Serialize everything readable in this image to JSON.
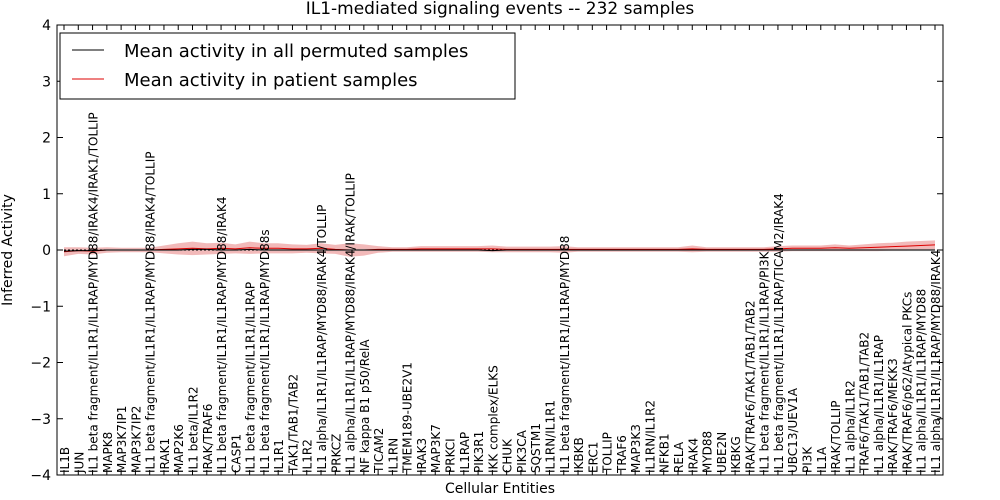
{
  "chart_data": {
    "type": "line",
    "title": "IL1-mediated signaling events -- 232 samples",
    "xlabel": "Cellular Entities",
    "ylabel": "Inferred Activity",
    "ylim": [
      -4,
      4
    ],
    "yticks": [
      "−4",
      "−3",
      "−2",
      "−1",
      "0",
      "1",
      "2",
      "3",
      "4"
    ],
    "legend_position": "top-left",
    "categories": [
      "IL1B",
      "JUN",
      "IL1 beta fragment/IL1R1/IL1RAP/MYD88/IRAK4/IRAK1/TOLLIP",
      "MAPK8",
      "MAP3K7IP1",
      "MAP3K7IP2",
      "IL1 beta fragment/IL1R1/IL1RAP/MYD88/IRAK4/TOLLIP",
      "IRAK1",
      "MAP2K6",
      "IL1 beta/IL1R2",
      "IRAK/TRAF6",
      "IL1 beta fragment/IL1R1/IL1RAP/MYD88/IRAK4",
      "CASP1",
      "IL1 beta fragment/IL1R1/IL1RAP",
      "IL1 beta fragment/IL1R1/IL1RAP/MYD88s",
      "IL1R1",
      "TAK1/TAB1/TAB2",
      "IL1R2",
      "IL1 alpha/IL1R1/IL1RAP/MYD88/IRAK4/TOLLIP",
      "PRKCZ",
      "IL1 alpha/IL1R1/IL1RAP/MYD88/IRAK4/IRAK/TOLLIP",
      "NF kappa B1 p50/RelA",
      "TICAM2",
      "IL1RN",
      "TMEM189-UBE2V1",
      "IRAK3",
      "MAP3K7",
      "PRKCI",
      "IL1RAP",
      "PIK3R1",
      "IKK complex/ELKS",
      "CHUK",
      "PIK3CA",
      "SQSTM1",
      "IL1RN/IL1R1",
      "IL1 beta fragment/IL1R1/IL1RAP/MYD88",
      "IKBKB",
      "ERC1",
      "TOLLIP",
      "TRAF6",
      "MAP3K3",
      "IL1RN/IL1R2",
      "NFKB1",
      "RELA",
      "IRAK4",
      "MYD88",
      "UBE2N",
      "IKBKG",
      "IRAK/TRAF6/TAK1/TAB1/TAB2",
      "IL1 beta fragment/IL1R1/IL1RAP/PI3K",
      "IL1 beta fragment/IL1R1/IL1RAP/TICAM2/IRAK4",
      "UBC13/UEV1A",
      "PI3K",
      "IL1A",
      "IRAK/TOLLIP",
      "IL1 alpha/IL1R2",
      "TRAF6/TAK1/TAB1/TAB2",
      "IL1 alpha/IL1R1/IL1RAP",
      "IRAK/TRAF6/MEKK3",
      "IRAK/TRAF6/p62/Atypical PKCs",
      "IL1 alpha/IL1R1/IL1RAP/MYD88",
      "IL1 alpha/IL1R1/IL1RAP/MYD88/IRAK4"
    ],
    "series": [
      {
        "name": "Mean activity in all permuted samples",
        "color": "#000000",
        "values": [
          -0.02,
          -0.01,
          -0.01,
          0.0,
          0.0,
          0.0,
          0.0,
          0.0,
          0.0,
          0.01,
          0.01,
          0.0,
          0.0,
          0.01,
          0.0,
          0.0,
          0.0,
          0.0,
          0.0,
          0.0,
          0.0,
          0.0,
          0.0,
          0.0,
          0.0,
          0.0,
          0.0,
          0.0,
          0.0,
          0.0,
          -0.01,
          0.0,
          0.0,
          0.0,
          0.0,
          0.0,
          0.0,
          0.0,
          0.0,
          0.0,
          0.0,
          0.0,
          0.0,
          0.0,
          0.0,
          0.0,
          0.0,
          0.0,
          0.0,
          0.0,
          0.0,
          0.0,
          0.0,
          0.0,
          0.0,
          0.0,
          0.0,
          0.0,
          0.0,
          0.0,
          0.0,
          0.0
        ]
      },
      {
        "name": "Mean activity in patient samples",
        "color": "#dd0000",
        "band_color": "#e88080",
        "values": [
          -0.03,
          -0.01,
          -0.02,
          0.0,
          0.0,
          0.0,
          0.0,
          0.01,
          0.02,
          0.03,
          0.02,
          0.03,
          0.02,
          0.04,
          0.03,
          0.03,
          0.02,
          0.02,
          0.03,
          0.01,
          0.0,
          0.0,
          0.01,
          0.01,
          0.01,
          0.02,
          0.02,
          0.02,
          0.02,
          0.02,
          0.02,
          0.01,
          0.01,
          0.01,
          0.01,
          0.01,
          0.01,
          0.01,
          0.01,
          0.01,
          0.01,
          0.01,
          0.01,
          0.01,
          0.02,
          0.01,
          0.01,
          0.01,
          0.01,
          0.01,
          0.02,
          0.03,
          0.03,
          0.03,
          0.04,
          0.03,
          0.04,
          0.05,
          0.06,
          0.07,
          0.08,
          0.09
        ],
        "band_half_width": [
          0.08,
          0.06,
          0.06,
          0.05,
          0.04,
          0.04,
          0.04,
          0.07,
          0.1,
          0.12,
          0.1,
          0.1,
          0.08,
          0.11,
          0.09,
          0.09,
          0.08,
          0.07,
          0.09,
          0.08,
          0.12,
          0.1,
          0.06,
          0.04,
          0.04,
          0.05,
          0.05,
          0.05,
          0.05,
          0.05,
          0.06,
          0.05,
          0.05,
          0.05,
          0.05,
          0.06,
          0.04,
          0.04,
          0.04,
          0.04,
          0.04,
          0.04,
          0.04,
          0.04,
          0.06,
          0.04,
          0.04,
          0.04,
          0.04,
          0.04,
          0.05,
          0.05,
          0.05,
          0.05,
          0.06,
          0.05,
          0.06,
          0.07,
          0.07,
          0.08,
          0.08,
          0.08
        ]
      }
    ]
  }
}
